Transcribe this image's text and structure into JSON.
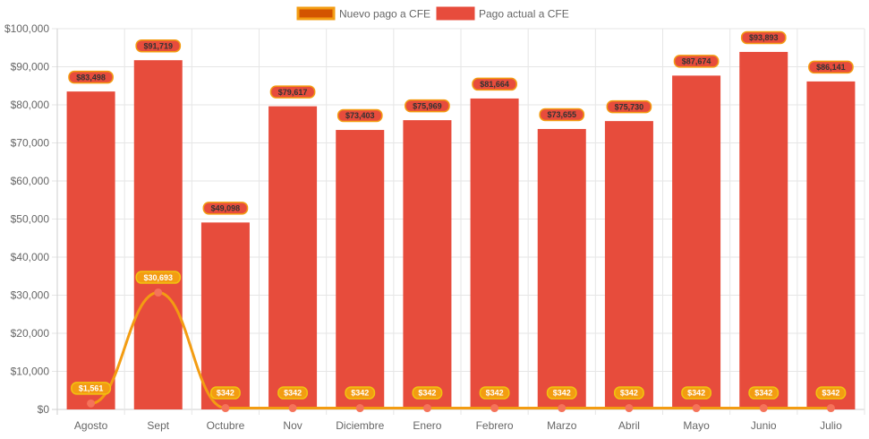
{
  "chart_data": {
    "type": "bar",
    "categories": [
      "Agosto",
      "Sept",
      "Octubre",
      "Nov",
      "Diciembre",
      "Enero",
      "Febrero",
      "Marzo",
      "Abril",
      "Mayo",
      "Junio",
      "Julio"
    ],
    "series": [
      {
        "name": "Nuevo pago a CFE",
        "type": "line",
        "values": [
          1561,
          30693,
          342,
          342,
          342,
          342,
          342,
          342,
          342,
          342,
          342,
          342
        ],
        "labels": [
          "$1,561",
          "$30,693",
          "$342",
          "$342",
          "$342",
          "$342",
          "$342",
          "$342",
          "$342",
          "$342",
          "$342",
          "$342"
        ],
        "color": "#f39c12",
        "point_color": "#f5735a",
        "legend_fill": "#d35400"
      },
      {
        "name": "Pago actual a CFE",
        "type": "bar",
        "values": [
          83498,
          91719,
          49098,
          79617,
          73403,
          75969,
          81664,
          73655,
          75730,
          87674,
          93893,
          86141
        ],
        "labels": [
          "$83,498",
          "$91,719",
          "$49,098",
          "$79,617",
          "$73,403",
          "$75,969",
          "$81,664",
          "$73,655",
          "$75,730",
          "$87,674",
          "$93,893",
          "$86,141"
        ],
        "color": "#e74c3c",
        "label_bg": "#e74c3c",
        "label_border": "#f39c12"
      }
    ],
    "ylim": [
      0,
      100000
    ],
    "y_ticks": [
      0,
      10000,
      20000,
      30000,
      40000,
      50000,
      60000,
      70000,
      80000,
      90000,
      100000
    ],
    "y_tick_labels": [
      "$0",
      "$10,000",
      "$20,000",
      "$30,000",
      "$40,000",
      "$50,000",
      "$60,000",
      "$70,000",
      "$80,000",
      "$90,000",
      "$100,000"
    ],
    "grid": true,
    "legend_position": "top",
    "title": "",
    "xlabel": "",
    "ylabel": ""
  }
}
